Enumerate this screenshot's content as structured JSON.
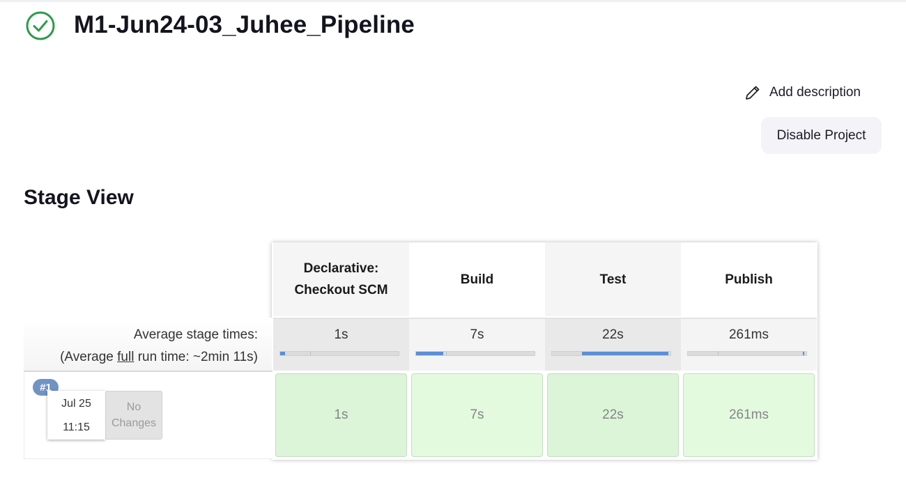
{
  "job": {
    "status_icon": "check-circle-icon",
    "title": "M1-Jun24-03_Juhee_Pipeline"
  },
  "actions": {
    "add_description": "Add description",
    "add_description_icon": "pencil-icon",
    "disable_project": "Disable Project"
  },
  "stage_view": {
    "title": "Stage View",
    "average_label": "Average stage times:",
    "full_run_prefix": "(Average ",
    "full_run_link": "full",
    "full_run_suffix": " run time: ~2min 11s)",
    "stages": [
      {
        "line1": "Declarative:",
        "line2": "Checkout SCM",
        "avg": "1s",
        "bar_fraction": 0.04
      },
      {
        "line1": "Build",
        "line2": "",
        "avg": "7s",
        "bar_fraction": 0.23
      },
      {
        "line1": "Test",
        "line2": "",
        "avg": "22s",
        "bar_fraction": 0.73
      },
      {
        "line1": "Publish",
        "line2": "",
        "avg": "261ms",
        "bar_fraction": 0.01
      }
    ],
    "runs": [
      {
        "badge": "#1",
        "date": "Jul 25",
        "time": "11:15",
        "changes_line1": "No",
        "changes_line2": "Changes",
        "cells": [
          "1s",
          "7s",
          "22s",
          "261ms"
        ]
      }
    ]
  },
  "colors": {
    "success_green": "#2c9b4a",
    "progress_blue": "#5b8fd6",
    "stage_success_bg": "#dcf4d8",
    "run_badge": "#6f93c4"
  }
}
